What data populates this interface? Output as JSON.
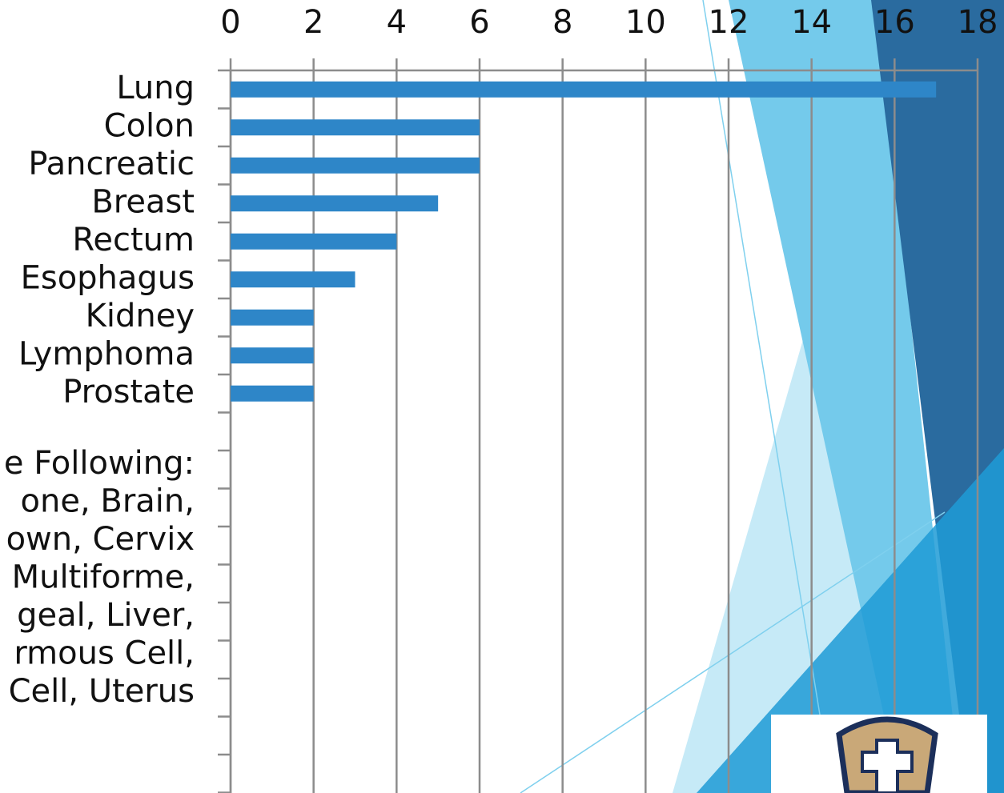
{
  "chart_data": {
    "type": "bar",
    "orientation": "horizontal",
    "categories": [
      "Lung",
      "Colon",
      "Pancreatic",
      "Breast",
      "Rectum",
      "Esophagus",
      "Kidney",
      "Lymphoma",
      "Prostate"
    ],
    "values": [
      17,
      6,
      6,
      5,
      4,
      3,
      2,
      2,
      2
    ],
    "color": "#2e86c8",
    "xlim": [
      0,
      18
    ],
    "xticks": [
      0,
      2,
      4,
      6,
      8,
      10,
      12,
      14,
      16,
      18
    ],
    "grid": true,
    "annotation_lines": [
      "e Following:",
      "one, Brain,",
      "own, Cervix",
      "Multiforme,",
      "geal, Liver,",
      "rmous Cell,",
      "Cell, Uterus"
    ]
  }
}
